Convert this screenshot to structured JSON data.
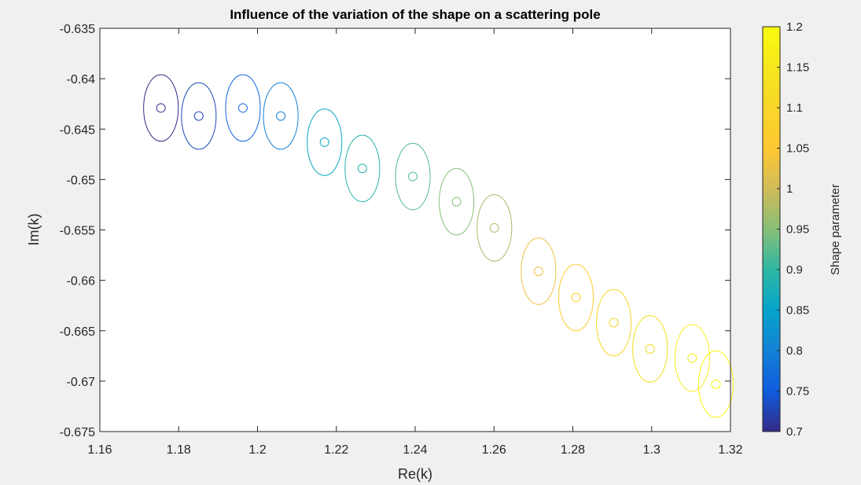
{
  "chart_data": {
    "type": "scatter",
    "title": "Influence of the variation of the shape on a scattering pole",
    "xlabel": "Re(k)",
    "ylabel": "Im(k)",
    "xlim": [
      1.16,
      1.32
    ],
    "ylim": [
      -0.675,
      -0.635
    ],
    "xticks": [
      "1.16",
      "1.18",
      "1.2",
      "1.22",
      "1.24",
      "1.26",
      "1.28",
      "1.3",
      "1.32"
    ],
    "yticks": [
      "-0.635",
      "-0.64",
      "-0.645",
      "-0.65",
      "-0.655",
      "-0.66",
      "-0.665",
      "-0.67",
      "-0.675"
    ],
    "grid": false,
    "colorbar": {
      "label": "Shape parameter",
      "range": [
        0.7,
        1.2
      ],
      "colormap": "parula",
      "ticks": [
        "1.2",
        "1.15",
        "1.1",
        "1.05",
        "1",
        "0.95",
        "0.9",
        "0.85",
        "0.8",
        "0.75",
        "0.7"
      ]
    },
    "ellipse_semi_axes": {
      "re": 0.0044,
      "im": 0.0033
    },
    "points": [
      {
        "re": 1.1755,
        "im": -0.6429,
        "shape": 0.7
      },
      {
        "re": 1.1851,
        "im": -0.6437,
        "shape": 0.73
      },
      {
        "re": 1.1963,
        "im": -0.6429,
        "shape": 0.76
      },
      {
        "re": 1.2059,
        "im": -0.6437,
        "shape": 0.8
      },
      {
        "re": 1.217,
        "im": -0.6463,
        "shape": 0.86
      },
      {
        "re": 1.2266,
        "im": -0.6489,
        "shape": 0.89
      },
      {
        "re": 1.2394,
        "im": -0.6497,
        "shape": 0.92
      },
      {
        "re": 1.2505,
        "im": -0.6522,
        "shape": 0.95
      },
      {
        "re": 1.2601,
        "im": -0.6548,
        "shape": 0.97
      },
      {
        "re": 1.2713,
        "im": -0.6591,
        "shape": 1.03
      },
      {
        "re": 1.2808,
        "im": -0.6617,
        "shape": 1.07
      },
      {
        "re": 1.2904,
        "im": -0.6642,
        "shape": 1.1
      },
      {
        "re": 1.2996,
        "im": -0.6668,
        "shape": 1.13
      },
      {
        "re": 1.3103,
        "im": -0.6677,
        "shape": 1.16
      },
      {
        "re": 1.3163,
        "im": -0.6703,
        "shape": 1.19
      }
    ]
  }
}
